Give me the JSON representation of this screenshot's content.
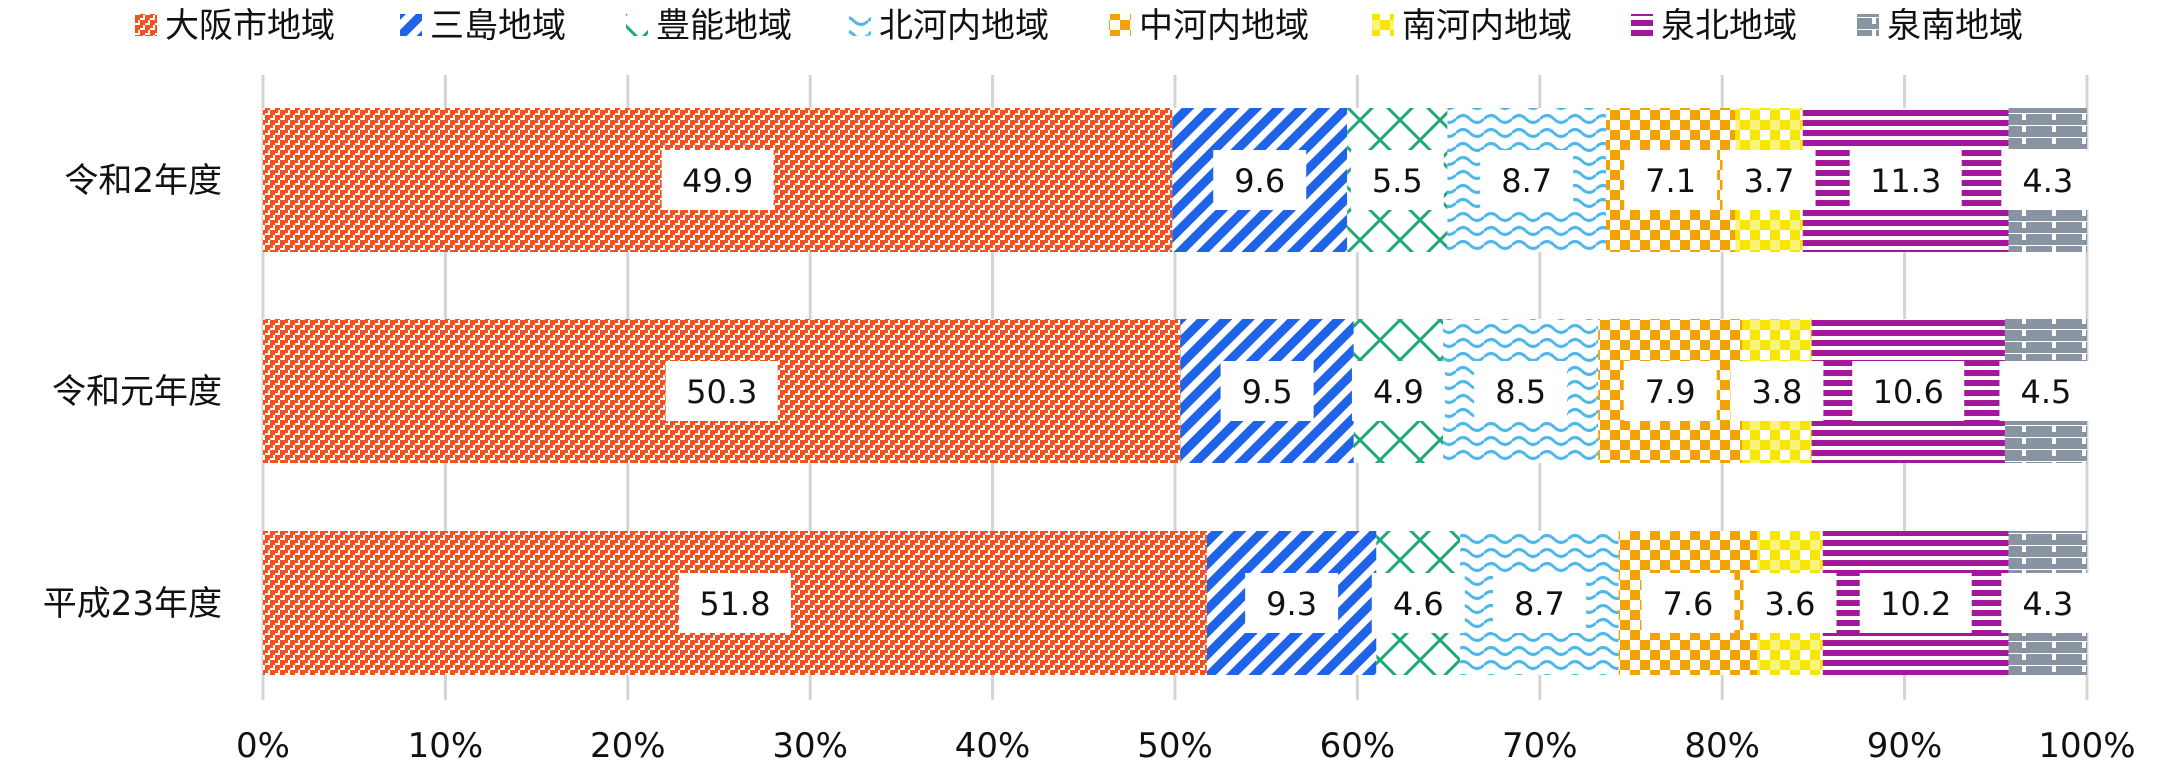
{
  "chart_data": {
    "type": "bar",
    "orientation": "horizontal",
    "stacked": "percent",
    "title": "",
    "xlabel": "",
    "ylabel": "",
    "xlim": [
      0,
      100
    ],
    "x_ticks": [
      "0%",
      "10%",
      "20%",
      "30%",
      "40%",
      "50%",
      "60%",
      "70%",
      "80%",
      "90%",
      "100%"
    ],
    "grid": "vertical",
    "legend_position": "top",
    "categories": [
      "令和2年度",
      "令和元年度",
      "平成23年度"
    ],
    "series": [
      {
        "name": "大阪市地域",
        "color": "#f4511e",
        "pattern": "dots",
        "values": [
          49.9,
          50.3,
          51.8
        ]
      },
      {
        "name": "三島地域",
        "color": "#1e63e8",
        "pattern": "diagonal",
        "values": [
          9.6,
          9.5,
          9.3
        ]
      },
      {
        "name": "豊能地域",
        "color": "#1fa878",
        "pattern": "zigzag",
        "values": [
          5.5,
          4.9,
          4.6
        ]
      },
      {
        "name": "北河内地域",
        "color": "#4fb8ea",
        "pattern": "wave",
        "values": [
          8.7,
          8.5,
          8.7
        ]
      },
      {
        "name": "中河内地域",
        "color": "#f5a100",
        "pattern": "checker",
        "values": [
          7.1,
          7.9,
          7.6
        ]
      },
      {
        "name": "南河内地域",
        "color": "#f7e600",
        "pattern": "checker",
        "values": [
          3.7,
          3.8,
          3.6
        ]
      },
      {
        "name": "泉北地域",
        "color": "#a3179a",
        "pattern": "horizontal",
        "values": [
          11.3,
          10.6,
          10.2
        ]
      },
      {
        "name": "泉南地域",
        "color": "#8894a2",
        "pattern": "brick",
        "values": [
          4.3,
          4.5,
          4.3
        ]
      }
    ]
  }
}
